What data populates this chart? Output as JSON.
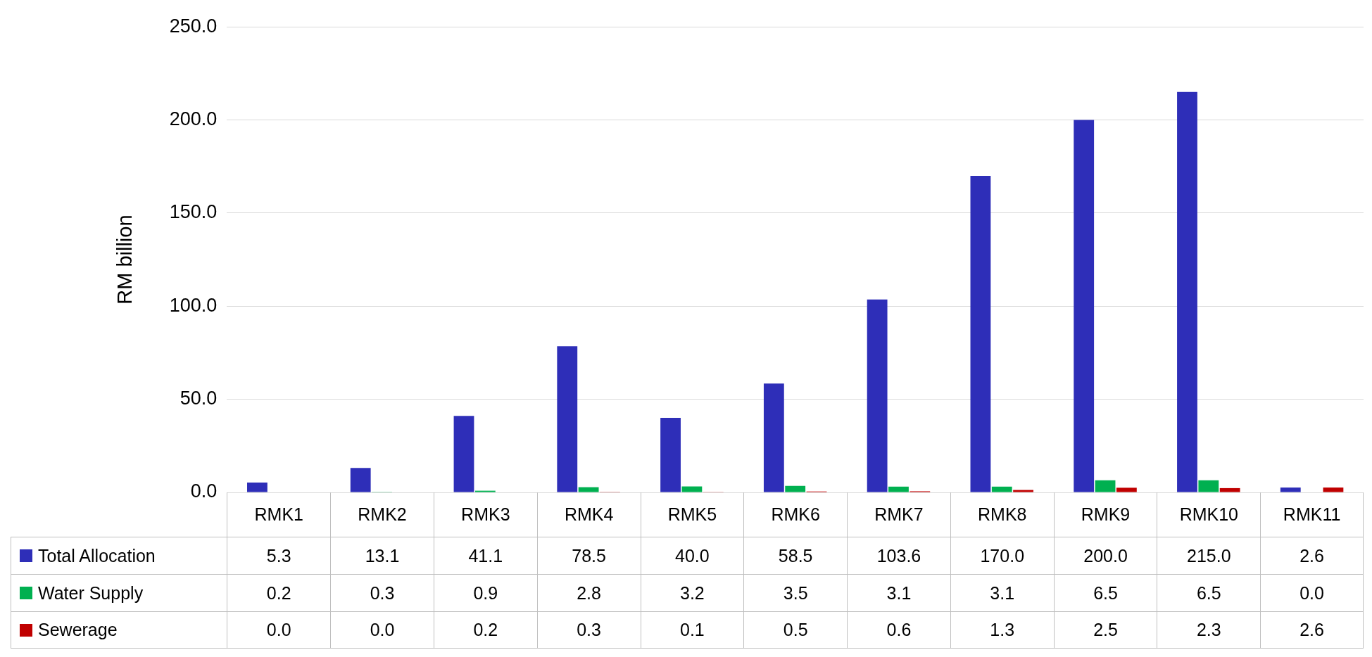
{
  "chart_data": {
    "type": "bar",
    "ylabel": "RM billion",
    "categories": [
      "RMK1",
      "RMK2",
      "RMK3",
      "RMK4",
      "RMK5",
      "RMK6",
      "RMK7",
      "RMK8",
      "RMK9",
      "RMK10",
      "RMK11"
    ],
    "series": [
      {
        "name": "Total Allocation",
        "color": "#2e2eb8",
        "values": [
          5.3,
          13.1,
          41.1,
          78.5,
          40.0,
          58.5,
          103.6,
          170.0,
          200.0,
          215.0,
          2.6
        ],
        "value_labels": [
          "5.3",
          "13.1",
          "41.1",
          "78.5",
          "40.0",
          "58.5",
          "103.6",
          "170.0",
          "200.0",
          "215.0",
          "2.6"
        ]
      },
      {
        "name": "Water Supply",
        "color": "#00b050",
        "values": [
          0.2,
          0.3,
          0.9,
          2.8,
          3.2,
          3.5,
          3.1,
          3.1,
          6.5,
          6.5,
          0.0
        ],
        "value_labels": [
          "0.2",
          "0.3",
          "0.9",
          "2.8",
          "3.2",
          "3.5",
          "3.1",
          "3.1",
          "6.5",
          "6.5",
          "0.0"
        ]
      },
      {
        "name": "Sewerage",
        "color": "#c00000",
        "values": [
          0.0,
          0.0,
          0.2,
          0.3,
          0.1,
          0.5,
          0.6,
          1.3,
          2.5,
          2.3,
          2.6
        ],
        "value_labels": [
          "0.0",
          "0.0",
          "0.2",
          "0.3",
          "0.1",
          "0.5",
          "0.6",
          "1.3",
          "2.5",
          "2.3",
          "2.6"
        ]
      }
    ],
    "ylim": [
      0,
      250
    ],
    "yticks": [
      {
        "value": 0,
        "label": "0.0"
      },
      {
        "value": 50,
        "label": "50.0"
      },
      {
        "value": 100,
        "label": "100.0"
      },
      {
        "value": 150,
        "label": "150.0"
      },
      {
        "value": 200,
        "label": "200.0"
      },
      {
        "value": 250,
        "label": "250.0"
      }
    ],
    "grid": "y",
    "legend": "bottom"
  }
}
